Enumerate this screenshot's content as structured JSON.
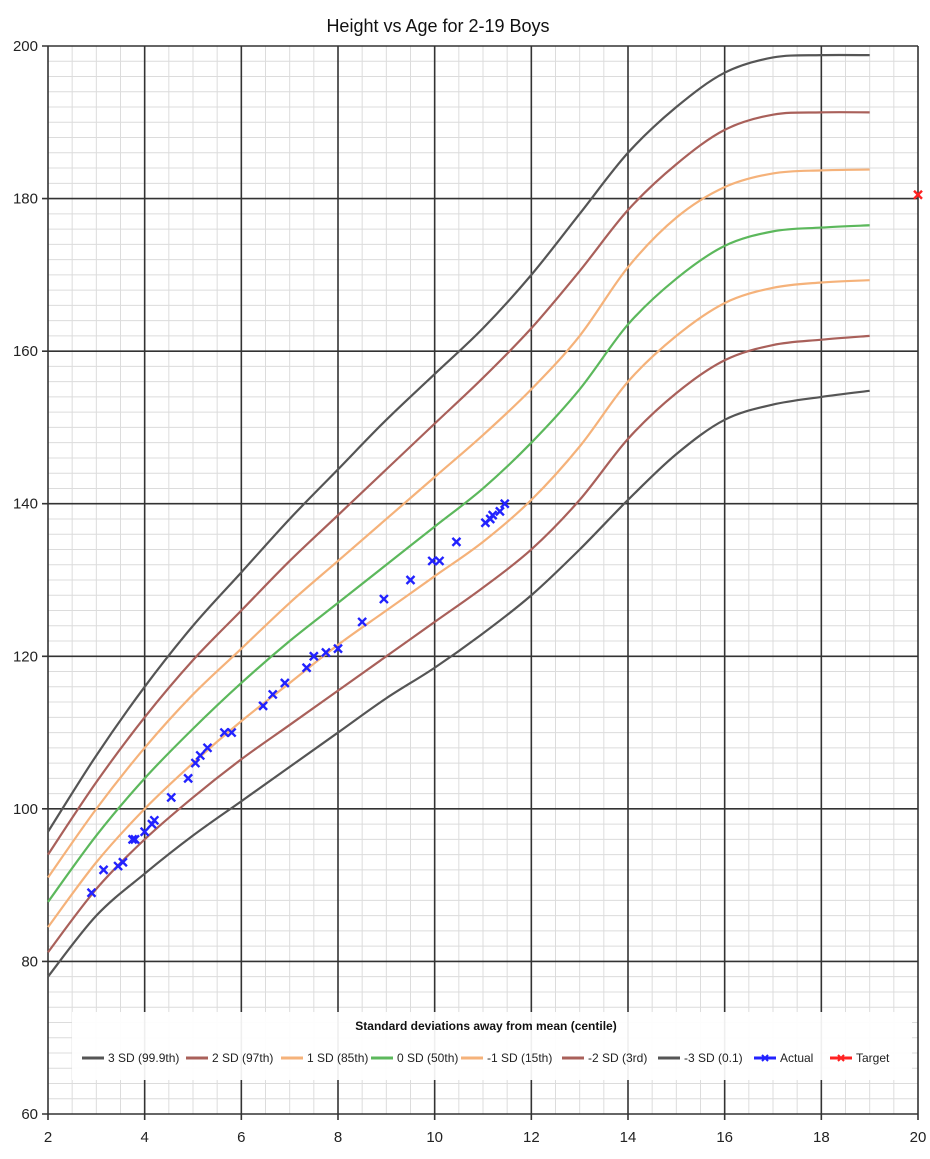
{
  "chart_data": {
    "type": "line",
    "title": "Height vs Age for 2-19 Boys",
    "xlabel": "",
    "ylabel": "",
    "xlim": [
      2,
      20
    ],
    "ylim": [
      60,
      200
    ],
    "x_ticks": [
      2,
      4,
      6,
      8,
      10,
      12,
      14,
      16,
      18,
      20
    ],
    "y_ticks": [
      60,
      80,
      100,
      120,
      140,
      160,
      180,
      200
    ],
    "grid": true,
    "legend_position": "bottom-inside",
    "legend_title": "Standard deviations away from mean (centile)",
    "series": [
      {
        "name": "3 SD (99.9th)",
        "color": "#555555",
        "kind": "line",
        "x": [
          2,
          3,
          4,
          5,
          6,
          7,
          8,
          9,
          10,
          11,
          12,
          13,
          14,
          15,
          16,
          17,
          18,
          19
        ],
        "y": [
          97,
          107,
          116,
          124,
          131,
          138,
          144.5,
          151,
          157,
          163,
          170,
          178,
          186,
          192,
          196.5,
          198.5,
          198.8,
          198.8
        ]
      },
      {
        "name": "2 SD (97th)",
        "color": "#a9605a",
        "kind": "line",
        "x": [
          2,
          3,
          4,
          5,
          6,
          7,
          8,
          9,
          10,
          11,
          12,
          13,
          14,
          15,
          16,
          17,
          18,
          19
        ],
        "y": [
          94,
          103.5,
          112,
          119.5,
          126,
          132.5,
          138.5,
          144.5,
          150.5,
          156.5,
          163,
          170.5,
          178.5,
          184.5,
          189,
          191,
          191.3,
          191.3
        ]
      },
      {
        "name": "1 SD (85th)",
        "color": "#f5b27a",
        "kind": "line",
        "x": [
          2,
          3,
          4,
          5,
          6,
          7,
          8,
          9,
          10,
          11,
          12,
          13,
          14,
          15,
          16,
          17,
          18,
          19
        ],
        "y": [
          91,
          100,
          108,
          115,
          121,
          127,
          132.5,
          138,
          143.5,
          149,
          155,
          162,
          171,
          177.5,
          181.5,
          183.3,
          183.7,
          183.8
        ]
      },
      {
        "name": "0 SD (50th)",
        "color": "#5cb85c",
        "kind": "line",
        "x": [
          2,
          3,
          4,
          5,
          6,
          7,
          8,
          9,
          10,
          11,
          12,
          13,
          14,
          15,
          16,
          17,
          18,
          19
        ],
        "y": [
          87.8,
          96.5,
          104,
          110.5,
          116.5,
          122,
          127,
          132,
          137,
          142,
          148,
          155,
          163.5,
          169.5,
          173.8,
          175.7,
          176.2,
          176.5
        ]
      },
      {
        "name": "-1 SD (15th)",
        "color": "#f5b27a",
        "kind": "line",
        "x": [
          2,
          3,
          4,
          5,
          6,
          7,
          8,
          9,
          10,
          11,
          12,
          13,
          14,
          15,
          16,
          17,
          18,
          19
        ],
        "y": [
          84.5,
          93,
          100,
          106,
          111.5,
          116.5,
          121.5,
          126,
          130.5,
          135,
          140.5,
          147.5,
          156,
          162,
          166.3,
          168.3,
          169,
          169.3
        ]
      },
      {
        "name": "-2 SD (3rd)",
        "color": "#a9605a",
        "kind": "line",
        "x": [
          2,
          3,
          4,
          5,
          6,
          7,
          8,
          9,
          10,
          11,
          12,
          13,
          14,
          15,
          16,
          17,
          18,
          19
        ],
        "y": [
          81.2,
          89.5,
          96,
          101.5,
          106.5,
          111,
          115.5,
          120,
          124.5,
          129,
          134,
          140.5,
          148.5,
          154.5,
          158.8,
          160.8,
          161.5,
          162
        ]
      },
      {
        "name": "-3 SD (0.1)",
        "color": "#555555",
        "kind": "line",
        "x": [
          2,
          3,
          4,
          5,
          6,
          7,
          8,
          9,
          10,
          11,
          12,
          13,
          14,
          15,
          16,
          17,
          18,
          19
        ],
        "y": [
          78,
          86,
          91.5,
          96.5,
          101,
          105.5,
          110,
          114.5,
          118.5,
          123,
          128,
          134,
          140.5,
          146.5,
          151,
          153,
          154,
          154.8
        ]
      },
      {
        "name": "Actual",
        "color": "#2222ff",
        "kind": "scatter",
        "x": [
          2.9,
          3.15,
          3.45,
          3.55,
          3.75,
          3.8,
          4.0,
          4.15,
          4.2,
          4.55,
          4.9,
          5.05,
          5.15,
          5.3,
          5.65,
          5.8,
          6.45,
          6.65,
          6.9,
          7.35,
          7.5,
          7.75,
          8.0,
          8.5,
          8.95,
          9.5,
          9.95,
          10.1,
          10.45,
          11.05,
          11.15,
          11.2,
          11.35,
          11.45
        ],
        "y": [
          89,
          92,
          92.5,
          93,
          96,
          96,
          97,
          98,
          98.5,
          101.5,
          104,
          106,
          107,
          108,
          110,
          110,
          113.5,
          115,
          116.5,
          118.5,
          120,
          120.5,
          121,
          124.5,
          127.5,
          130,
          132.5,
          132.5,
          135,
          137.5,
          138,
          138.5,
          139,
          140
        ]
      },
      {
        "name": "Target",
        "color": "#ff2222",
        "kind": "scatter",
        "x": [
          20
        ],
        "y": [
          180.5
        ]
      }
    ]
  }
}
